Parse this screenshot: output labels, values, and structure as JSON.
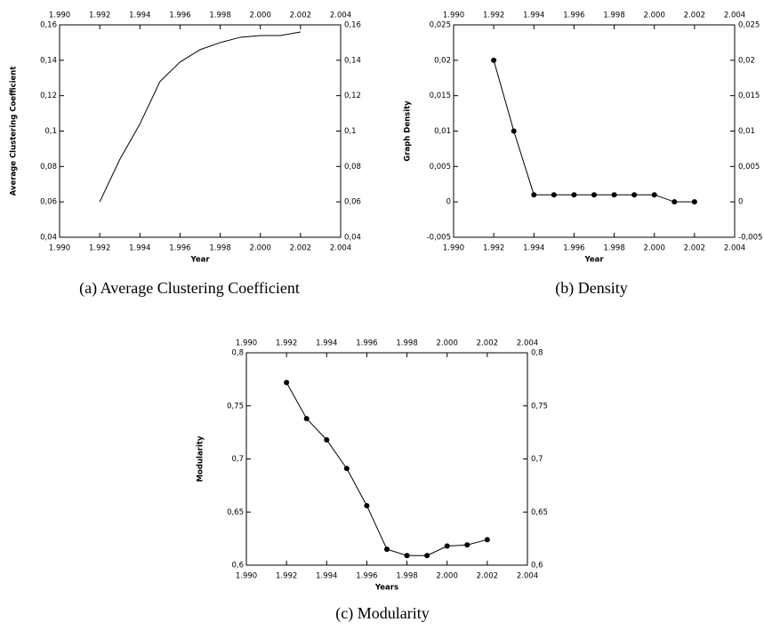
{
  "chart_data": [
    {
      "type": "line",
      "caption": "(a) Average Clustering Coefficient",
      "xlabel": "Year",
      "ylabel": "Average Clustering Coefficient",
      "markers": false,
      "color": "#000000",
      "x": [
        1992,
        1993,
        1994,
        1995,
        1996,
        1997,
        1998,
        1999,
        2000,
        2001,
        2002
      ],
      "values": [
        0.06,
        0.084,
        0.104,
        0.128,
        0.139,
        0.146,
        0.15,
        0.153,
        0.154,
        0.154,
        0.156
      ],
      "xlim": [
        1990,
        2004
      ],
      "xticks": [
        {
          "value": 1990,
          "label": "1.990"
        },
        {
          "value": 1992,
          "label": "1.992"
        },
        {
          "value": 1994,
          "label": "1.994"
        },
        {
          "value": 1996,
          "label": "1.996"
        },
        {
          "value": 1998,
          "label": "1.998"
        },
        {
          "value": 2000,
          "label": "2.000"
        },
        {
          "value": 2002,
          "label": "2.002"
        },
        {
          "value": 2004,
          "label": "2.004"
        }
      ],
      "ylim": [
        0.04,
        0.16
      ],
      "yticks": [
        {
          "value": 0.04,
          "label": "0,04"
        },
        {
          "value": 0.06,
          "label": "0,06"
        },
        {
          "value": 0.08,
          "label": "0,08"
        },
        {
          "value": 0.1,
          "label": "0,1"
        },
        {
          "value": 0.12,
          "label": "0,12"
        },
        {
          "value": 0.14,
          "label": "0,14"
        },
        {
          "value": 0.16,
          "label": "0,16"
        }
      ]
    },
    {
      "type": "line",
      "caption": "(b) Density",
      "xlabel": "Year",
      "ylabel": "Graph Density",
      "markers": true,
      "color": "#000000",
      "x": [
        1992,
        1993,
        1994,
        1995,
        1996,
        1997,
        1998,
        1999,
        2000,
        2001,
        2002
      ],
      "values": [
        0.02,
        0.01,
        0.001,
        0.001,
        0.001,
        0.001,
        0.001,
        0.001,
        0.001,
        0,
        0
      ],
      "xlim": [
        1990,
        2004
      ],
      "xticks": [
        {
          "value": 1990,
          "label": "1.990"
        },
        {
          "value": 1992,
          "label": "1.992"
        },
        {
          "value": 1994,
          "label": "1.994"
        },
        {
          "value": 1996,
          "label": "1.996"
        },
        {
          "value": 1998,
          "label": "1.998"
        },
        {
          "value": 2000,
          "label": "2.000"
        },
        {
          "value": 2002,
          "label": "2.002"
        },
        {
          "value": 2004,
          "label": "2.004"
        }
      ],
      "ylim": [
        -0.005,
        0.025
      ],
      "yticks": [
        {
          "value": -0.005,
          "label": "-0,005"
        },
        0,
        {
          "value": 0.005,
          "label": "0,005"
        },
        {
          "value": 0.01,
          "label": "0,01"
        },
        {
          "value": 0.015,
          "label": "0,015"
        },
        {
          "value": 0.02,
          "label": "0,02"
        },
        {
          "value": 0.025,
          "label": "0,025"
        }
      ]
    },
    {
      "type": "line",
      "caption": "(c) Modularity",
      "xlabel": "Years",
      "ylabel": "Modularity",
      "markers": true,
      "color": "#000000",
      "x": [
        1992,
        1993,
        1994,
        1995,
        1996,
        1997,
        1998,
        1999,
        2000,
        2001,
        2002
      ],
      "values": [
        0.772,
        0.738,
        0.718,
        0.691,
        0.656,
        0.615,
        0.609,
        0.609,
        0.618,
        0.619,
        0.624
      ],
      "xlim": [
        1990,
        2004
      ],
      "xticks": [
        {
          "value": 1990,
          "label": "1.990"
        },
        {
          "value": 1992,
          "label": "1.992"
        },
        {
          "value": 1994,
          "label": "1.994"
        },
        {
          "value": 1996,
          "label": "1.996"
        },
        {
          "value": 1998,
          "label": "1.998"
        },
        {
          "value": 2000,
          "label": "2.000"
        },
        {
          "value": 2002,
          "label": "2.002"
        },
        {
          "value": 2004,
          "label": "2.004"
        }
      ],
      "ylim": [
        0.6,
        0.8
      ],
      "yticks": [
        {
          "value": 0.6,
          "label": "0,6"
        },
        {
          "value": 0.65,
          "label": "0,65"
        },
        {
          "value": 0.7,
          "label": "0,7"
        },
        {
          "value": 0.75,
          "label": "0,75"
        },
        {
          "value": 0.8,
          "label": "0,8"
        }
      ]
    }
  ]
}
